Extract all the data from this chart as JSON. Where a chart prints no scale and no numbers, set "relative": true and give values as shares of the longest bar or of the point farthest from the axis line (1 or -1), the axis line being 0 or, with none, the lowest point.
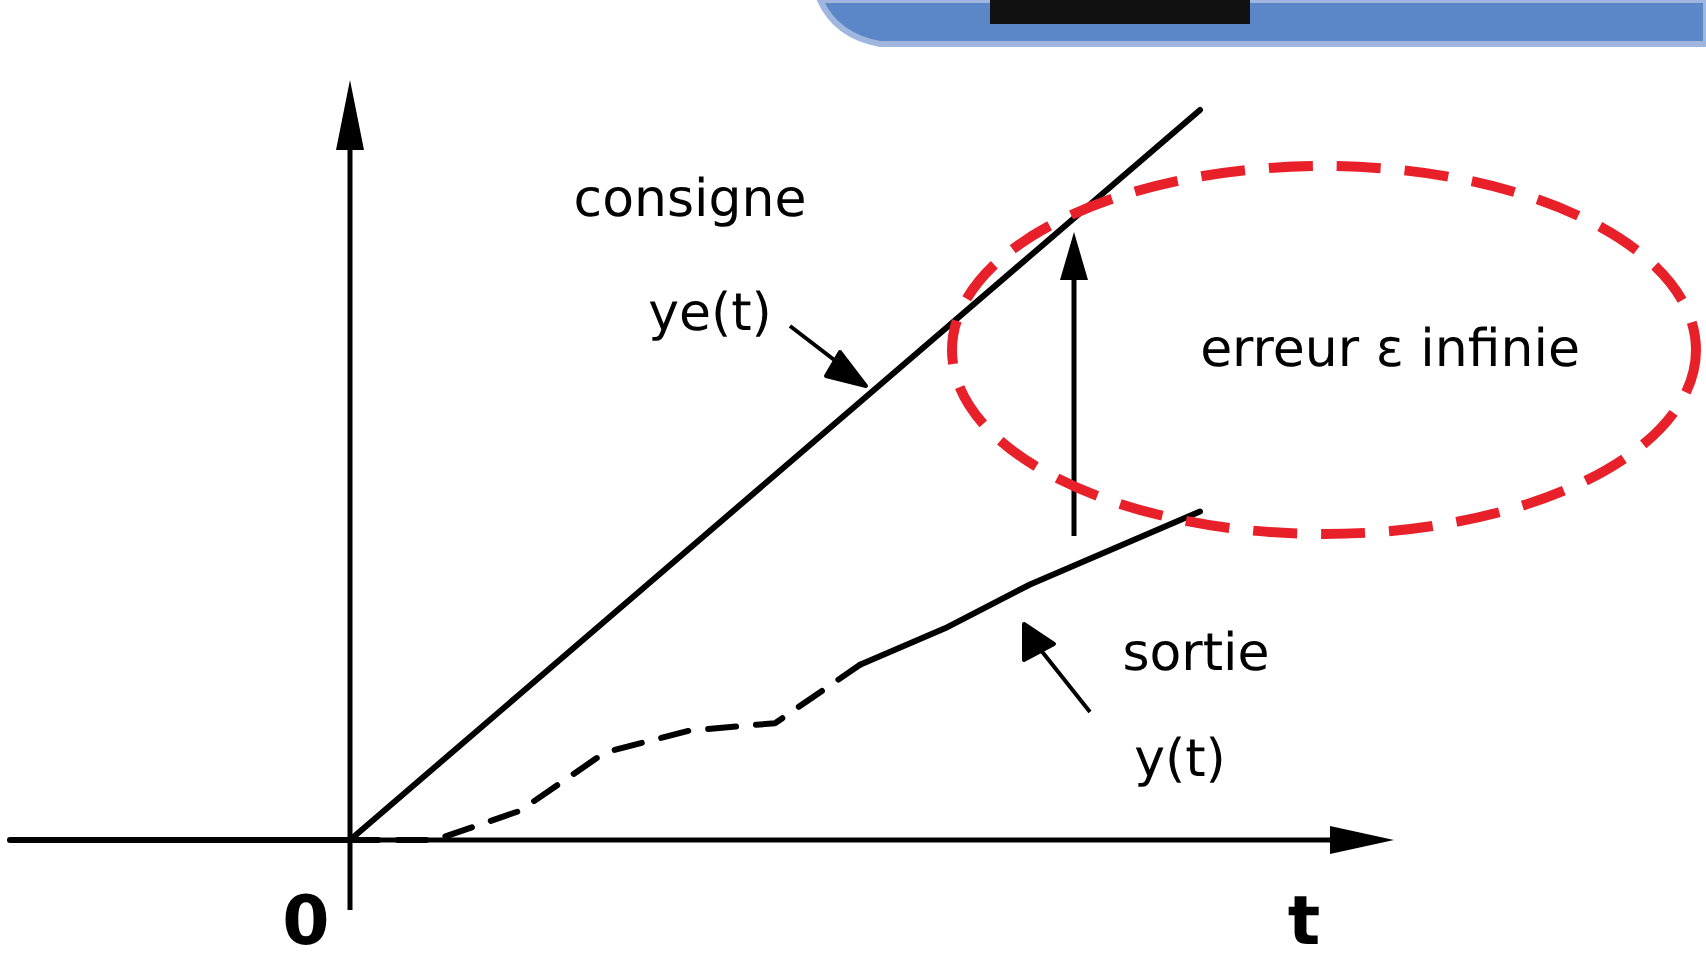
{
  "chart_data": {
    "type": "line",
    "relative": true,
    "xlabel": "t",
    "categories": [
      null,
      null,
      null,
      null,
      null,
      null,
      null,
      null,
      null,
      null,
      null,
      null,
      null,
      null,
      null
    ],
    "series": [
      {
        "color": "#000000",
        "values": [
          0,
          0,
          0,
          0,
          0,
          null,
          null,
          null,
          null,
          null,
          null,
          null,
          null,
          null,
          null
        ],
        "line_style": "solid"
      },
      {
        "color": "#000000",
        "values": [
          null,
          null,
          null,
          null,
          0,
          0.1,
          0.2,
          0.3,
          0.4,
          0.5,
          0.6,
          0.7,
          0.8,
          0.9,
          1
        ],
        "line_style": "solid"
      },
      {
        "color": "#000000",
        "values": [
          null,
          null,
          null,
          null,
          0,
          0,
          0.04,
          0.12,
          0.15,
          0.16,
          0.24,
          null,
          null,
          null,
          null
        ],
        "line_style": "dashed"
      },
      {
        "color": "#000000",
        "values": [
          null,
          null,
          null,
          null,
          null,
          null,
          null,
          null,
          null,
          null,
          0.24,
          0.29,
          0.35,
          0.4,
          0.45
        ],
        "line_style": "solid"
      }
    ],
    "annotations": [
      "consigne",
      "ye(t)",
      "erreur ε infinie",
      "sortie",
      "y(t)",
      "0"
    ]
  }
}
